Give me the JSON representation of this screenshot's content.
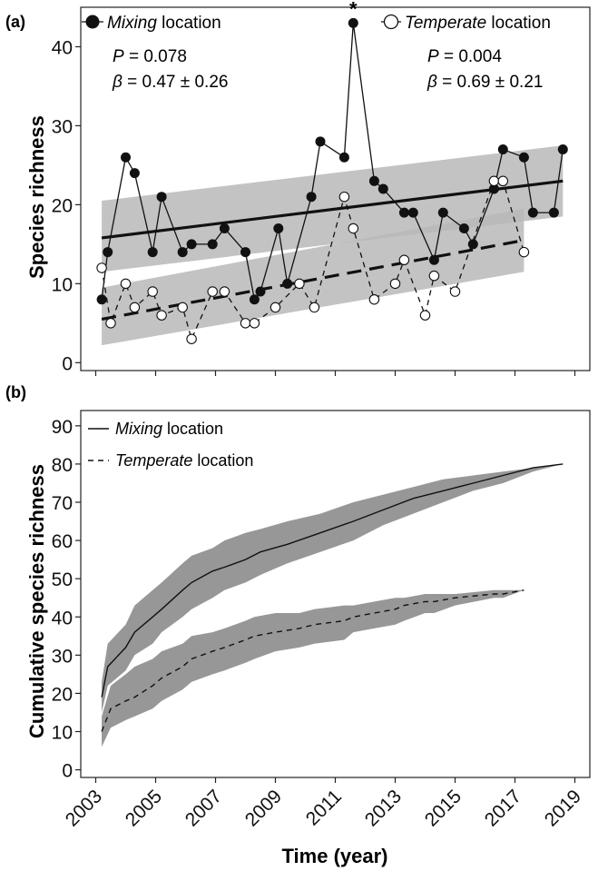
{
  "chart_data": [
    {
      "type": "line",
      "panel_label": "(a)",
      "ylabel": "Species richness",
      "xlabel": "",
      "xlim": [
        2002.5,
        2019.5
      ],
      "ylim": [
        -1,
        45
      ],
      "yticks": [
        0,
        10,
        20,
        30,
        40
      ],
      "xticks": [
        2003,
        2005,
        2007,
        2009,
        2011,
        2013,
        2015,
        2017,
        2019
      ],
      "grid": false,
      "series": [
        {
          "name": "Mixing location",
          "name_italic": "Mixing",
          "name_rest": " location",
          "marker": "filled-circle",
          "line_style": "solid",
          "points": [
            [
              2003.2,
              8
            ],
            [
              2003.4,
              14
            ],
            [
              2004.0,
              26
            ],
            [
              2004.3,
              24
            ],
            [
              2004.9,
              14
            ],
            [
              2005.2,
              21
            ],
            [
              2005.9,
              14
            ],
            [
              2006.2,
              15
            ],
            [
              2006.9,
              15
            ],
            [
              2007.3,
              17
            ],
            [
              2008.0,
              14
            ],
            [
              2008.3,
              8
            ],
            [
              2008.5,
              9
            ],
            [
              2009.1,
              17
            ],
            [
              2009.4,
              10
            ],
            [
              2010.2,
              21
            ],
            [
              2010.5,
              28
            ],
            [
              2011.3,
              26
            ],
            [
              2011.6,
              43
            ],
            [
              2012.3,
              23
            ],
            [
              2012.6,
              22
            ],
            [
              2013.3,
              19
            ],
            [
              2013.6,
              19
            ],
            [
              2014.3,
              13
            ],
            [
              2014.6,
              19
            ],
            [
              2015.3,
              17
            ],
            [
              2015.6,
              15
            ],
            [
              2016.3,
              22
            ],
            [
              2016.6,
              27
            ],
            [
              2017.3,
              26
            ],
            [
              2017.6,
              19
            ],
            [
              2018.3,
              19
            ],
            [
              2018.6,
              27
            ]
          ],
          "fit": {
            "x": [
              2003.2,
              2018.6
            ],
            "y": [
              15.8,
              23.0
            ]
          },
          "ci": {
            "x": [
              2003.2,
              2018.6
            ],
            "upper": [
              20.5,
              27.5
            ],
            "lower": [
              11.5,
              18.5
            ]
          },
          "stats": {
            "p_label": "P",
            "p_value": " = 0.078",
            "beta_label": "β",
            "beta_value": " = 0.47 ± 0.26"
          }
        },
        {
          "name": "Temperate location",
          "name_italic": "Temperate",
          "name_rest": " location",
          "marker": "open-circle",
          "line_style": "dashed",
          "points": [
            [
              2003.2,
              12
            ],
            [
              2003.5,
              5
            ],
            [
              2004.0,
              10
            ],
            [
              2004.3,
              7
            ],
            [
              2004.9,
              9
            ],
            [
              2005.2,
              6
            ],
            [
              2005.9,
              7
            ],
            [
              2006.2,
              3
            ],
            [
              2006.9,
              9
            ],
            [
              2007.3,
              9
            ],
            [
              2008.0,
              5
            ],
            [
              2008.3,
              5
            ],
            [
              2009.0,
              7
            ],
            [
              2009.8,
              10
            ],
            [
              2010.3,
              7
            ],
            [
              2011.3,
              21
            ],
            [
              2011.6,
              17
            ],
            [
              2012.3,
              8
            ],
            [
              2013.0,
              10
            ],
            [
              2013.3,
              13
            ],
            [
              2014.0,
              6
            ],
            [
              2014.3,
              11
            ],
            [
              2015.0,
              9
            ],
            [
              2016.3,
              23
            ],
            [
              2016.6,
              23
            ],
            [
              2017.3,
              14
            ]
          ],
          "fit": {
            "x": [
              2003.2,
              2017.3
            ],
            "y": [
              5.5,
              15.5
            ]
          },
          "ci": {
            "x": [
              2003.2,
              2017.3
            ],
            "upper": [
              9.5,
              19.5
            ],
            "lower": [
              2.2,
              11.5
            ]
          },
          "stats": {
            "p_label": "P",
            "p_value": " = 0.004",
            "beta_label": "β",
            "beta_value": " = 0.69 ± 0.21"
          }
        }
      ],
      "annotations": [
        {
          "text": "*",
          "x": 2011.6,
          "y": 43
        }
      ],
      "legend_placement": "top"
    },
    {
      "type": "line",
      "panel_label": "(b)",
      "ylabel": "Cumulative species richness",
      "xlabel": "Time (year)",
      "xlim": [
        2002.5,
        2019.5
      ],
      "ylim": [
        -2,
        94
      ],
      "yticks": [
        0,
        10,
        20,
        30,
        40,
        50,
        60,
        70,
        80,
        90
      ],
      "xticks": [
        2003,
        2005,
        2007,
        2009,
        2011,
        2013,
        2015,
        2017,
        2019
      ],
      "grid": false,
      "series": [
        {
          "name": "Mixing location",
          "name_italic": "Mixing",
          "name_rest": " location",
          "line_style": "solid",
          "x": [
            2003.2,
            2003.4,
            2004.0,
            2004.3,
            2004.9,
            2005.2,
            2005.9,
            2006.2,
            2006.9,
            2007.3,
            2008.0,
            2008.5,
            2009.4,
            2010.5,
            2011.6,
            2012.6,
            2013.6,
            2014.6,
            2015.6,
            2016.6,
            2017.6,
            2018.6
          ],
          "values": [
            19,
            27,
            32,
            36,
            40,
            42,
            47,
            49,
            52,
            53,
            55,
            57,
            59,
            62,
            65,
            68,
            71,
            73,
            75,
            77,
            79,
            80
          ],
          "upper": [
            23,
            33,
            38,
            43,
            47,
            49,
            54,
            56,
            58,
            60,
            62,
            63,
            65,
            67,
            70,
            72,
            74,
            76,
            77,
            78,
            79,
            80
          ],
          "lower": [
            15,
            22,
            26,
            30,
            33,
            36,
            40,
            42,
            45,
            47,
            49,
            51,
            54,
            57,
            60,
            64,
            67,
            70,
            73,
            75,
            78,
            80
          ]
        },
        {
          "name": "Temperate location",
          "name_italic": "Temperate",
          "name_rest": " location",
          "line_style": "dashed",
          "x": [
            2003.2,
            2003.5,
            2004.0,
            2004.3,
            2004.9,
            2005.2,
            2005.9,
            2006.2,
            2006.9,
            2007.3,
            2008.0,
            2008.3,
            2009.0,
            2009.8,
            2010.3,
            2011.3,
            2011.6,
            2012.3,
            2013.0,
            2013.3,
            2014.0,
            2014.3,
            2015.0,
            2016.3,
            2016.6,
            2017.3
          ],
          "values": [
            10,
            16,
            18,
            19,
            22,
            24,
            27,
            29,
            31,
            32,
            34,
            35,
            36,
            37,
            38,
            39,
            40,
            41,
            42,
            43,
            44,
            44,
            45,
            46,
            46,
            47
          ],
          "upper": [
            14,
            22,
            25,
            27,
            29,
            31,
            33,
            35,
            36,
            37,
            39,
            40,
            41,
            41,
            42,
            43,
            43,
            44,
            45,
            45,
            46,
            46,
            46,
            47,
            47,
            47
          ],
          "lower": [
            6,
            11,
            13,
            14,
            16,
            18,
            21,
            23,
            25,
            26,
            28,
            29,
            31,
            32,
            33,
            34,
            36,
            37,
            38,
            39,
            41,
            41,
            43,
            45,
            45,
            47
          ]
        }
      ],
      "legend_placement": "top-left"
    }
  ]
}
